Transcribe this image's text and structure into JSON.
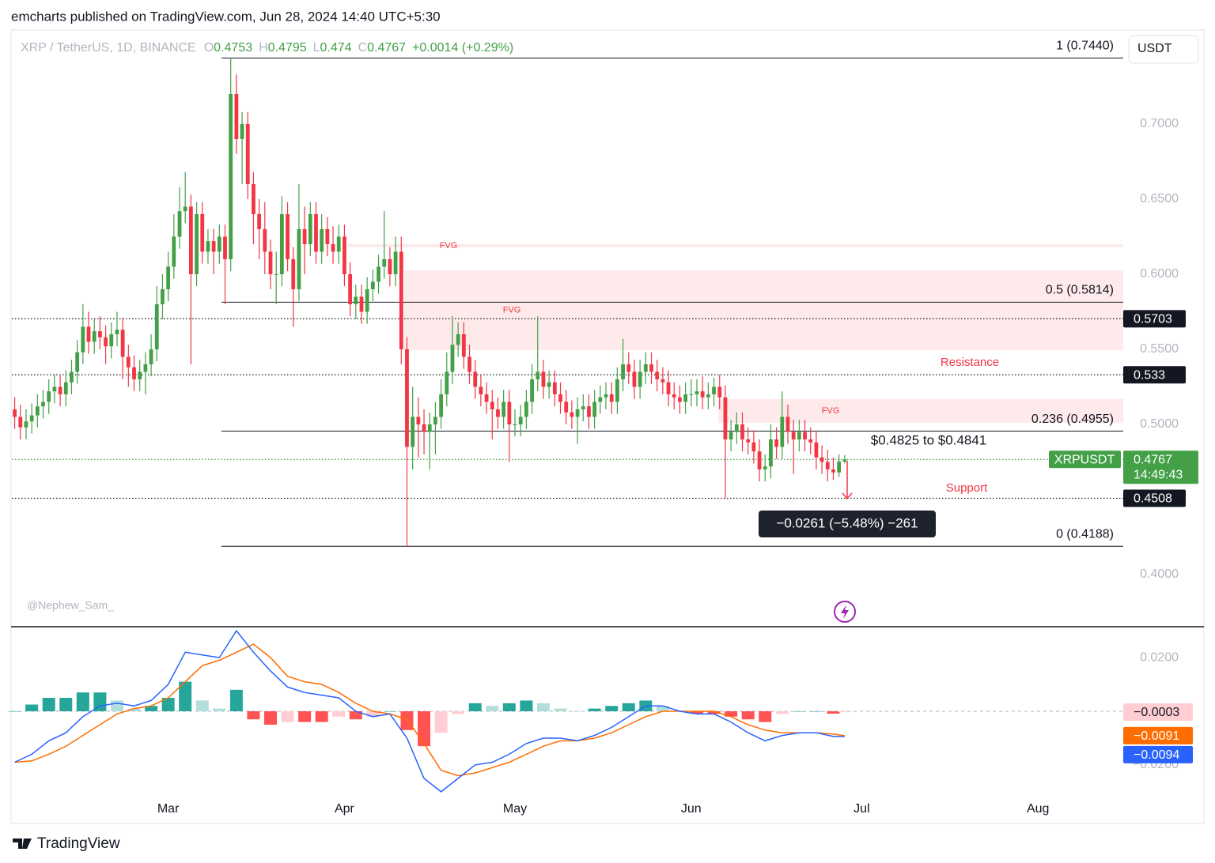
{
  "header": "emcharts published on TradingView.com, Jun 28, 2024 14:40 UTC+5:30",
  "footer_brand": "TradingView",
  "watermark": "@Nephew_Sam_",
  "currency": "USDT",
  "chart_data": [
    {
      "type": "candlestick",
      "title": "XRP / TetherUS, 1D, BINANCE",
      "ohlc_legend": [
        {
          "label": "O",
          "value": 0.4753
        },
        {
          "label": "H",
          "value": 0.4795
        },
        {
          "label": "L",
          "value": 0.474
        },
        {
          "label": "C",
          "value": 0.4767
        }
      ],
      "change": "+0.0014 (+0.29%)",
      "up_color": "#43a047",
      "down_color": "#f23645",
      "candles": [
        [
          0.51,
          0.518,
          0.497,
          0.505
        ],
        [
          0.505,
          0.513,
          0.49,
          0.498
        ],
        [
          0.498,
          0.51,
          0.49,
          0.502
        ],
        [
          0.502,
          0.514,
          0.494,
          0.506
        ],
        [
          0.506,
          0.52,
          0.498,
          0.512
        ],
        [
          0.512,
          0.523,
          0.504,
          0.515
        ],
        [
          0.515,
          0.53,
          0.507,
          0.522
        ],
        [
          0.522,
          0.533,
          0.514,
          0.525
        ],
        [
          0.525,
          0.533,
          0.512,
          0.52
        ],
        [
          0.52,
          0.536,
          0.512,
          0.528
        ],
        [
          0.528,
          0.543,
          0.52,
          0.535
        ],
        [
          0.535,
          0.556,
          0.527,
          0.548
        ],
        [
          0.548,
          0.58,
          0.54,
          0.565
        ],
        [
          0.565,
          0.575,
          0.547,
          0.555
        ],
        [
          0.555,
          0.57,
          0.547,
          0.562
        ],
        [
          0.562,
          0.572,
          0.55,
          0.558
        ],
        [
          0.558,
          0.566,
          0.54,
          0.552
        ],
        [
          0.552,
          0.568,
          0.544,
          0.56
        ],
        [
          0.56,
          0.575,
          0.552,
          0.563
        ],
        [
          0.563,
          0.571,
          0.53,
          0.545
        ],
        [
          0.545,
          0.553,
          0.525,
          0.538
        ],
        [
          0.538,
          0.546,
          0.522,
          0.53
        ],
        [
          0.53,
          0.543,
          0.522,
          0.535
        ],
        [
          0.535,
          0.548,
          0.52,
          0.54
        ],
        [
          0.54,
          0.56,
          0.532,
          0.55
        ],
        [
          0.55,
          0.592,
          0.542,
          0.58
        ],
        [
          0.58,
          0.6,
          0.57,
          0.59
        ],
        [
          0.59,
          0.615,
          0.582,
          0.605
        ],
        [
          0.605,
          0.64,
          0.597,
          0.625
        ],
        [
          0.625,
          0.658,
          0.617,
          0.642
        ],
        [
          0.642,
          0.668,
          0.634,
          0.645
        ],
        [
          0.645,
          0.653,
          0.54,
          0.6
        ],
        [
          0.6,
          0.648,
          0.592,
          0.64
        ],
        [
          0.64,
          0.648,
          0.607,
          0.615
        ],
        [
          0.615,
          0.63,
          0.607,
          0.622
        ],
        [
          0.622,
          0.63,
          0.6,
          0.615
        ],
        [
          0.615,
          0.633,
          0.607,
          0.625
        ],
        [
          0.625,
          0.633,
          0.58,
          0.61
        ],
        [
          0.61,
          0.744,
          0.602,
          0.72
        ],
        [
          0.72,
          0.733,
          0.68,
          0.69
        ],
        [
          0.69,
          0.708,
          0.66,
          0.7
        ],
        [
          0.7,
          0.708,
          0.65,
          0.66
        ],
        [
          0.66,
          0.668,
          0.62,
          0.64
        ],
        [
          0.64,
          0.65,
          0.61,
          0.63
        ],
        [
          0.63,
          0.648,
          0.6,
          0.615
        ],
        [
          0.615,
          0.623,
          0.59,
          0.6
        ],
        [
          0.6,
          0.615,
          0.58,
          0.6
        ],
        [
          0.6,
          0.652,
          0.592,
          0.64
        ],
        [
          0.64,
          0.648,
          0.602,
          0.61
        ],
        [
          0.61,
          0.618,
          0.565,
          0.59
        ],
        [
          0.59,
          0.66,
          0.582,
          0.63
        ],
        [
          0.63,
          0.645,
          0.6,
          0.62
        ],
        [
          0.62,
          0.648,
          0.612,
          0.64
        ],
        [
          0.64,
          0.648,
          0.607,
          0.615
        ],
        [
          0.615,
          0.64,
          0.607,
          0.63
        ],
        [
          0.63,
          0.638,
          0.612,
          0.62
        ],
        [
          0.62,
          0.632,
          0.607,
          0.615
        ],
        [
          0.615,
          0.633,
          0.607,
          0.625
        ],
        [
          0.625,
          0.633,
          0.592,
          0.6
        ],
        [
          0.6,
          0.608,
          0.572,
          0.58
        ],
        [
          0.58,
          0.593,
          0.57,
          0.585
        ],
        [
          0.585,
          0.593,
          0.567,
          0.575
        ],
        [
          0.575,
          0.598,
          0.567,
          0.59
        ],
        [
          0.59,
          0.603,
          0.582,
          0.595
        ],
        [
          0.595,
          0.613,
          0.587,
          0.605
        ],
        [
          0.605,
          0.642,
          0.597,
          0.61
        ],
        [
          0.61,
          0.618,
          0.592,
          0.6
        ],
        [
          0.6,
          0.625,
          0.592,
          0.615
        ],
        [
          0.615,
          0.625,
          0.54,
          0.55
        ],
        [
          0.55,
          0.558,
          0.4188,
          0.485
        ],
        [
          0.485,
          0.525,
          0.47,
          0.505
        ],
        [
          0.505,
          0.518,
          0.478,
          0.5
        ],
        [
          0.5,
          0.51,
          0.48,
          0.495
        ],
        [
          0.495,
          0.508,
          0.47,
          0.5
        ],
        [
          0.5,
          0.515,
          0.48,
          0.505
        ],
        [
          0.505,
          0.53,
          0.497,
          0.52
        ],
        [
          0.52,
          0.548,
          0.512,
          0.535
        ],
        [
          0.535,
          0.572,
          0.527,
          0.553
        ],
        [
          0.553,
          0.568,
          0.545,
          0.56
        ],
        [
          0.56,
          0.568,
          0.537,
          0.545
        ],
        [
          0.545,
          0.553,
          0.527,
          0.535
        ],
        [
          0.535,
          0.543,
          0.517,
          0.525
        ],
        [
          0.525,
          0.533,
          0.512,
          0.52
        ],
        [
          0.52,
          0.528,
          0.507,
          0.515
        ],
        [
          0.515,
          0.523,
          0.49,
          0.51
        ],
        [
          0.51,
          0.518,
          0.497,
          0.505
        ],
        [
          0.505,
          0.523,
          0.497,
          0.515
        ],
        [
          0.515,
          0.523,
          0.475,
          0.5
        ],
        [
          0.5,
          0.51,
          0.492,
          0.5
        ],
        [
          0.5,
          0.513,
          0.492,
          0.505
        ],
        [
          0.505,
          0.523,
          0.497,
          0.515
        ],
        [
          0.515,
          0.54,
          0.507,
          0.53
        ],
        [
          0.53,
          0.572,
          0.522,
          0.535
        ],
        [
          0.535,
          0.543,
          0.517,
          0.525
        ],
        [
          0.525,
          0.536,
          0.517,
          0.528
        ],
        [
          0.528,
          0.536,
          0.512,
          0.52
        ],
        [
          0.52,
          0.528,
          0.507,
          0.515
        ],
        [
          0.515,
          0.523,
          0.5,
          0.508
        ],
        [
          0.508,
          0.516,
          0.497,
          0.505
        ],
        [
          0.505,
          0.518,
          0.487,
          0.51
        ],
        [
          0.51,
          0.52,
          0.502,
          0.512
        ],
        [
          0.512,
          0.52,
          0.497,
          0.505
        ],
        [
          0.505,
          0.523,
          0.497,
          0.515
        ],
        [
          0.515,
          0.526,
          0.507,
          0.518
        ],
        [
          0.518,
          0.528,
          0.51,
          0.52
        ],
        [
          0.52,
          0.528,
          0.507,
          0.515
        ],
        [
          0.515,
          0.538,
          0.507,
          0.53
        ],
        [
          0.53,
          0.557,
          0.522,
          0.54
        ],
        [
          0.54,
          0.548,
          0.527,
          0.535
        ],
        [
          0.535,
          0.543,
          0.517,
          0.525
        ],
        [
          0.525,
          0.543,
          0.517,
          0.535
        ],
        [
          0.535,
          0.548,
          0.527,
          0.54
        ],
        [
          0.54,
          0.548,
          0.527,
          0.535
        ],
        [
          0.535,
          0.543,
          0.522,
          0.53
        ],
        [
          0.53,
          0.538,
          0.52,
          0.528
        ],
        [
          0.528,
          0.536,
          0.512,
          0.52
        ],
        [
          0.52,
          0.528,
          0.51,
          0.518
        ],
        [
          0.518,
          0.526,
          0.507,
          0.515
        ],
        [
          0.515,
          0.528,
          0.507,
          0.52
        ],
        [
          0.52,
          0.53,
          0.512,
          0.52
        ],
        [
          0.52,
          0.53,
          0.512,
          0.522
        ],
        [
          0.522,
          0.532,
          0.51,
          0.518
        ],
        [
          0.518,
          0.528,
          0.51,
          0.52
        ],
        [
          0.52,
          0.531,
          0.512,
          0.525
        ],
        [
          0.525,
          0.533,
          0.51,
          0.518
        ],
        [
          0.518,
          0.526,
          0.4508,
          0.49
        ],
        [
          0.49,
          0.503,
          0.482,
          0.495
        ],
        [
          0.495,
          0.508,
          0.487,
          0.5
        ],
        [
          0.5,
          0.508,
          0.482,
          0.49
        ],
        [
          0.49,
          0.498,
          0.48,
          0.488
        ],
        [
          0.488,
          0.496,
          0.474,
          0.482
        ],
        [
          0.482,
          0.49,
          0.462,
          0.47
        ],
        [
          0.47,
          0.48,
          0.462,
          0.472
        ],
        [
          0.472,
          0.5,
          0.464,
          0.49
        ],
        [
          0.49,
          0.498,
          0.477,
          0.485
        ],
        [
          0.485,
          0.522,
          0.477,
          0.505
        ],
        [
          0.505,
          0.513,
          0.487,
          0.495
        ],
        [
          0.495,
          0.503,
          0.467,
          0.49
        ],
        [
          0.49,
          0.503,
          0.482,
          0.495
        ],
        [
          0.495,
          0.503,
          0.482,
          0.49
        ],
        [
          0.49,
          0.498,
          0.48,
          0.488
        ],
        [
          0.488,
          0.496,
          0.47,
          0.478
        ],
        [
          0.478,
          0.486,
          0.467,
          0.475
        ],
        [
          0.475,
          0.483,
          0.462,
          0.47
        ],
        [
          0.47,
          0.478,
          0.463,
          0.468
        ],
        [
          0.468,
          0.48,
          0.465,
          0.4753
        ],
        [
          0.4753,
          0.4795,
          0.474,
          0.4767
        ]
      ],
      "xlim": [
        -0.5,
        195
      ],
      "xticks": [
        {
          "value": 27,
          "label": "Mar"
        },
        {
          "value": 58,
          "label": "Apr"
        },
        {
          "value": 88,
          "label": "May"
        },
        {
          "value": 119,
          "label": "Jun"
        },
        {
          "value": 149,
          "label": "Jul"
        },
        {
          "value": 180,
          "label": "Aug"
        }
      ],
      "ylim": [
        0.3658,
        0.7626
      ],
      "yticks": [
        {
          "value": 0.7,
          "label": "0.7000"
        },
        {
          "value": 0.65,
          "label": "0.6500"
        },
        {
          "value": 0.6,
          "label": "0.6000"
        },
        {
          "value": 0.55,
          "label": "0.5500"
        },
        {
          "value": 0.5,
          "label": "0.5000"
        },
        {
          "value": 0.4,
          "label": "0.4000"
        }
      ],
      "grid": false,
      "fib_levels": [
        {
          "label": "1 (0.7440)",
          "value": 0.744
        },
        {
          "label": "0.5 (0.5814)",
          "value": 0.5814
        },
        {
          "label": "0.236 (0.4955)",
          "value": 0.4955
        },
        {
          "label": "0 (0.4188)",
          "value": 0.4188
        }
      ],
      "price_lines": [
        0.5703,
        0.533,
        0.4508
      ],
      "zones": [
        {
          "label": "FVG",
          "top": 0.62,
          "bottom": 0.618
        },
        {
          "label": "FVG",
          "top": 0.6026,
          "bottom": 0.5495
        },
        {
          "label": "FVG",
          "top": 0.5168,
          "bottom": 0.501
        }
      ],
      "annotations": {
        "resistance": "Resistance",
        "support": "Support",
        "range": "$0.4825 to $0.4841",
        "measure": "−0.0261 (−5.48%) −261"
      },
      "symbol": "XRPUSDT",
      "last_price": 0.4767,
      "countdown": "14:49:43"
    },
    {
      "type": "macd",
      "x": [
        0,
        3,
        6,
        9,
        12,
        15,
        18,
        21,
        24,
        27,
        30,
        33,
        36,
        39,
        42,
        45,
        48,
        51,
        54,
        57,
        60,
        63,
        66,
        69,
        72,
        75,
        78,
        81,
        84,
        87,
        90,
        93,
        96,
        99,
        102,
        105,
        108,
        111,
        114,
        117,
        120,
        123,
        126,
        129,
        132,
        135,
        138,
        141,
        144,
        146
      ],
      "histogram": {
        "colors": [
          "#26a69a",
          "#b2dfdb",
          "#ff5252",
          "#ffcdd2"
        ],
        "last_label": "−0.0003",
        "values": [
          0,
          0.0025,
          0.005,
          0.005,
          0.007,
          0.007,
          0.004,
          0.001,
          0.002,
          0.005,
          0.011,
          0.004,
          0.001,
          0.008,
          -0.003,
          -0.005,
          -0.004,
          -0.004,
          -0.004,
          -0.002,
          -0.003,
          -0.002,
          0,
          -0.007,
          -0.013,
          -0.008,
          -0.001,
          0.003,
          0.002,
          0.003,
          0.004,
          0.003,
          0.001,
          0,
          0.001,
          0.002,
          0.003,
          0.004,
          0.002,
          0,
          -0.001,
          -0.001,
          -0.002,
          -0.003,
          -0.004,
          -0.001,
          0,
          0,
          -0.0009,
          -0.0003
        ]
      },
      "series": [
        {
          "name": "Signal",
          "color": "#ff6d00",
          "last_label": "−0.0091",
          "values": [
            -0.019,
            -0.0185,
            -0.016,
            -0.013,
            -0.009,
            -0.005,
            -0.001,
            0.001,
            0.002,
            0.005,
            0.011,
            0.017,
            0.019,
            0.022,
            0.025,
            0.02,
            0.013,
            0.011,
            0.01,
            0.007,
            0.003,
            0,
            -0.001,
            -0.003,
            -0.012,
            -0.022,
            -0.024,
            -0.023,
            -0.021,
            -0.019,
            -0.016,
            -0.013,
            -0.011,
            -0.011,
            -0.01,
            -0.008,
            -0.005,
            -0.002,
            0,
            0,
            0,
            0,
            -0.002,
            -0.005,
            -0.007,
            -0.008,
            -0.008,
            -0.008,
            -0.0085,
            -0.0091
          ]
        },
        {
          "name": "MACD",
          "color": "#2962ff",
          "last_label": "−0.0094",
          "values": [
            -0.019,
            -0.016,
            -0.011,
            -0.008,
            -0.002,
            0.002,
            0.003,
            0.002,
            0.004,
            0.01,
            0.022,
            0.021,
            0.02,
            0.03,
            0.022,
            0.015,
            0.009,
            0.007,
            0.006,
            0.005,
            0,
            -0.002,
            -0.001,
            -0.01,
            -0.025,
            -0.03,
            -0.025,
            -0.02,
            -0.019,
            -0.016,
            -0.012,
            -0.01,
            -0.01,
            -0.011,
            -0.009,
            -0.006,
            -0.002,
            0.002,
            0.002,
            0,
            -0.001,
            -0.001,
            -0.004,
            -0.008,
            -0.011,
            -0.009,
            -0.008,
            -0.008,
            -0.0094,
            -0.0094
          ]
        }
      ],
      "ylim": [
        -0.0418,
        0.0315
      ],
      "yticks": [
        {
          "value": 0.02,
          "label": "0.0200"
        },
        {
          "value": -0.02,
          "label": "−0.0200"
        }
      ]
    }
  ]
}
